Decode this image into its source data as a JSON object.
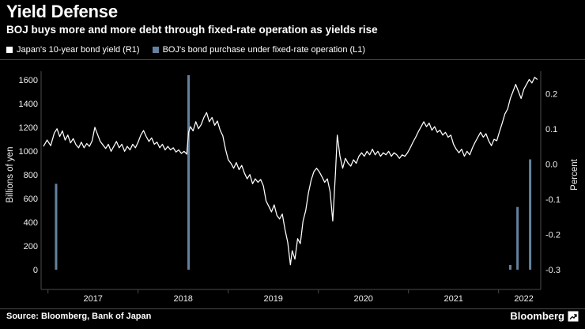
{
  "chart_data": {
    "type": "line+bar",
    "title": "Yield Defense",
    "subtitle": "BOJ buys more and more debt through fixed-rate operation as yields rise",
    "grid": false,
    "legend_position": "top",
    "legend": [
      {
        "label": "Japan's 10-year bond yield (R1)",
        "color": "#ffffff"
      },
      {
        "label": "BOJ's bond purchase under fixed-rate operation (L1)",
        "color": "#64819f"
      }
    ],
    "left_axis": {
      "label": "Billions of yen",
      "min": 0,
      "max": 1600,
      "ticks": [
        0,
        200,
        400,
        600,
        800,
        1000,
        1200,
        1400,
        1600
      ]
    },
    "right_axis": {
      "label": "Percent",
      "min": -0.3,
      "max": 0.25,
      "ticks": [
        -0.3,
        -0.2,
        -0.1,
        0.0,
        0.1,
        0.2
      ]
    },
    "x_axis": {
      "min": 2016.95,
      "max": 2022.45,
      "year_ticks": [
        2017,
        2018,
        2019,
        2020,
        2021,
        2022
      ],
      "labels": [
        {
          "label": "2017",
          "t": 2017.5
        },
        {
          "label": "2018",
          "t": 2018.5
        },
        {
          "label": "2019",
          "t": 2019.5
        },
        {
          "label": "2020",
          "t": 2020.5
        },
        {
          "label": "2021",
          "t": 2021.5
        },
        {
          "label": "2022",
          "t": 2022.28
        }
      ]
    },
    "series": [
      {
        "name": "BOJ's bond purchase under fixed-rate operation",
        "type": "bar",
        "axis": "left",
        "color": "#64819f",
        "points": [
          [
            2017.09,
            723.9
          ],
          [
            2018.56,
            1639.5
          ],
          [
            2022.13,
            40
          ],
          [
            2022.21,
            528.6
          ],
          [
            2022.35,
            930
          ]
        ]
      },
      {
        "name": "Japan's 10-year bond yield",
        "type": "line",
        "axis": "right",
        "color": "#ffffff",
        "points": [
          [
            2016.95,
            0.05
          ],
          [
            2016.99,
            0.068
          ],
          [
            2017.03,
            0.052
          ],
          [
            2017.07,
            0.088
          ],
          [
            2017.1,
            0.1
          ],
          [
            2017.13,
            0.078
          ],
          [
            2017.16,
            0.094
          ],
          [
            2017.19,
            0.068
          ],
          [
            2017.22,
            0.082
          ],
          [
            2017.25,
            0.06
          ],
          [
            2017.28,
            0.072
          ],
          [
            2017.31,
            0.055
          ],
          [
            2017.34,
            0.046
          ],
          [
            2017.37,
            0.062
          ],
          [
            2017.4,
            0.046
          ],
          [
            2017.43,
            0.058
          ],
          [
            2017.46,
            0.05
          ],
          [
            2017.49,
            0.066
          ],
          [
            2017.52,
            0.104
          ],
          [
            2017.55,
            0.084
          ],
          [
            2017.58,
            0.064
          ],
          [
            2017.61,
            0.054
          ],
          [
            2017.64,
            0.044
          ],
          [
            2017.67,
            0.056
          ],
          [
            2017.7,
            0.036
          ],
          [
            2017.73,
            0.05
          ],
          [
            2017.76,
            0.064
          ],
          [
            2017.79,
            0.046
          ],
          [
            2017.82,
            0.056
          ],
          [
            2017.85,
            0.036
          ],
          [
            2017.88,
            0.05
          ],
          [
            2017.91,
            0.04
          ],
          [
            2017.94,
            0.056
          ],
          [
            2017.97,
            0.046
          ],
          [
            2018.0,
            0.062
          ],
          [
            2018.03,
            0.082
          ],
          [
            2018.06,
            0.095
          ],
          [
            2018.09,
            0.078
          ],
          [
            2018.12,
            0.064
          ],
          [
            2018.15,
            0.074
          ],
          [
            2018.18,
            0.056
          ],
          [
            2018.21,
            0.062
          ],
          [
            2018.24,
            0.046
          ],
          [
            2018.27,
            0.056
          ],
          [
            2018.3,
            0.04
          ],
          [
            2018.33,
            0.05
          ],
          [
            2018.36,
            0.04
          ],
          [
            2018.39,
            0.046
          ],
          [
            2018.42,
            0.034
          ],
          [
            2018.45,
            0.04
          ],
          [
            2018.48,
            0.03
          ],
          [
            2018.51,
            0.036
          ],
          [
            2018.54,
            0.028
          ],
          [
            2018.56,
            0.09
          ],
          [
            2018.58,
            0.106
          ],
          [
            2018.61,
            0.094
          ],
          [
            2018.64,
            0.12
          ],
          [
            2018.67,
            0.1
          ],
          [
            2018.7,
            0.112
          ],
          [
            2018.73,
            0.132
          ],
          [
            2018.76,
            0.146
          ],
          [
            2018.79,
            0.12
          ],
          [
            2018.82,
            0.132
          ],
          [
            2018.85,
            0.11
          ],
          [
            2018.88,
            0.122
          ],
          [
            2018.91,
            0.096
          ],
          [
            2018.94,
            0.08
          ],
          [
            2018.97,
            0.042
          ],
          [
            2019.0,
            0.012
          ],
          [
            2019.03,
            0.002
          ],
          [
            2019.06,
            -0.012
          ],
          [
            2019.09,
            0.004
          ],
          [
            2019.12,
            -0.016
          ],
          [
            2019.15,
            -0.004
          ],
          [
            2019.18,
            -0.026
          ],
          [
            2019.21,
            -0.042
          ],
          [
            2019.24,
            -0.03
          ],
          [
            2019.27,
            -0.056
          ],
          [
            2019.3,
            -0.042
          ],
          [
            2019.33,
            -0.052
          ],
          [
            2019.36,
            -0.044
          ],
          [
            2019.39,
            -0.062
          ],
          [
            2019.42,
            -0.105
          ],
          [
            2019.45,
            -0.12
          ],
          [
            2019.48,
            -0.136
          ],
          [
            2019.51,
            -0.116
          ],
          [
            2019.54,
            -0.146
          ],
          [
            2019.57,
            -0.156
          ],
          [
            2019.6,
            -0.142
          ],
          [
            2019.63,
            -0.186
          ],
          [
            2019.66,
            -0.222
          ],
          [
            2019.69,
            -0.286
          ],
          [
            2019.71,
            -0.246
          ],
          [
            2019.74,
            -0.27
          ],
          [
            2019.77,
            -0.212
          ],
          [
            2019.8,
            -0.226
          ],
          [
            2019.83,
            -0.162
          ],
          [
            2019.86,
            -0.132
          ],
          [
            2019.89,
            -0.082
          ],
          [
            2019.92,
            -0.046
          ],
          [
            2019.95,
            -0.022
          ],
          [
            2019.98,
            -0.012
          ],
          [
            2020.01,
            -0.022
          ],
          [
            2020.04,
            -0.036
          ],
          [
            2020.07,
            -0.052
          ],
          [
            2020.1,
            -0.042
          ],
          [
            2020.13,
            -0.078
          ],
          [
            2020.16,
            -0.162
          ],
          [
            2020.19,
            -0.025
          ],
          [
            2020.21,
            0.082
          ],
          [
            2020.24,
            0.022
          ],
          [
            2020.27,
            -0.012
          ],
          [
            2020.3,
            0.016
          ],
          [
            2020.33,
            0.002
          ],
          [
            2020.36,
            -0.006
          ],
          [
            2020.39,
            0.012
          ],
          [
            2020.42,
            0.002
          ],
          [
            2020.45,
            0.022
          ],
          [
            2020.48,
            0.032
          ],
          [
            2020.51,
            0.022
          ],
          [
            2020.54,
            0.036
          ],
          [
            2020.57,
            0.026
          ],
          [
            2020.6,
            0.042
          ],
          [
            2020.63,
            0.026
          ],
          [
            2020.66,
            0.036
          ],
          [
            2020.69,
            0.022
          ],
          [
            2020.72,
            0.032
          ],
          [
            2020.75,
            0.026
          ],
          [
            2020.78,
            0.036
          ],
          [
            2020.81,
            0.022
          ],
          [
            2020.84,
            0.032
          ],
          [
            2020.87,
            0.026
          ],
          [
            2020.9,
            0.016
          ],
          [
            2020.93,
            0.026
          ],
          [
            2020.96,
            0.022
          ],
          [
            2020.99,
            0.032
          ],
          [
            2021.02,
            0.046
          ],
          [
            2021.05,
            0.062
          ],
          [
            2021.08,
            0.076
          ],
          [
            2021.11,
            0.092
          ],
          [
            2021.14,
            0.106
          ],
          [
            2021.17,
            0.12
          ],
          [
            2021.2,
            0.106
          ],
          [
            2021.23,
            0.116
          ],
          [
            2021.26,
            0.096
          ],
          [
            2021.29,
            0.106
          ],
          [
            2021.32,
            0.09
          ],
          [
            2021.35,
            0.096
          ],
          [
            2021.38,
            0.082
          ],
          [
            2021.41,
            0.09
          ],
          [
            2021.44,
            0.076
          ],
          [
            2021.47,
            0.082
          ],
          [
            2021.5,
            0.056
          ],
          [
            2021.53,
            0.042
          ],
          [
            2021.56,
            0.032
          ],
          [
            2021.59,
            0.042
          ],
          [
            2021.62,
            0.022
          ],
          [
            2021.65,
            0.036
          ],
          [
            2021.68,
            0.026
          ],
          [
            2021.71,
            0.046
          ],
          [
            2021.74,
            0.062
          ],
          [
            2021.77,
            0.076
          ],
          [
            2021.8,
            0.09
          ],
          [
            2021.83,
            0.076
          ],
          [
            2021.86,
            0.086
          ],
          [
            2021.89,
            0.066
          ],
          [
            2021.92,
            0.052
          ],
          [
            2021.95,
            0.07
          ],
          [
            2021.98,
            0.066
          ],
          [
            2022.01,
            0.092
          ],
          [
            2022.04,
            0.116
          ],
          [
            2022.07,
            0.142
          ],
          [
            2022.1,
            0.156
          ],
          [
            2022.13,
            0.186
          ],
          [
            2022.16,
            0.206
          ],
          [
            2022.19,
            0.226
          ],
          [
            2022.22,
            0.206
          ],
          [
            2022.25,
            0.186
          ],
          [
            2022.28,
            0.212
          ],
          [
            2022.31,
            0.226
          ],
          [
            2022.34,
            0.24
          ],
          [
            2022.37,
            0.23
          ],
          [
            2022.4,
            0.246
          ],
          [
            2022.43,
            0.24
          ]
        ]
      }
    ]
  },
  "footer": {
    "source": "Source: Bloomberg, Bank of Japan",
    "logo_text": "Bloomberg"
  },
  "colors": {
    "background": "#000000",
    "line": "#ffffff",
    "bar": "#64819f",
    "axis": "#4a4a4a",
    "text": "#ffffff"
  }
}
